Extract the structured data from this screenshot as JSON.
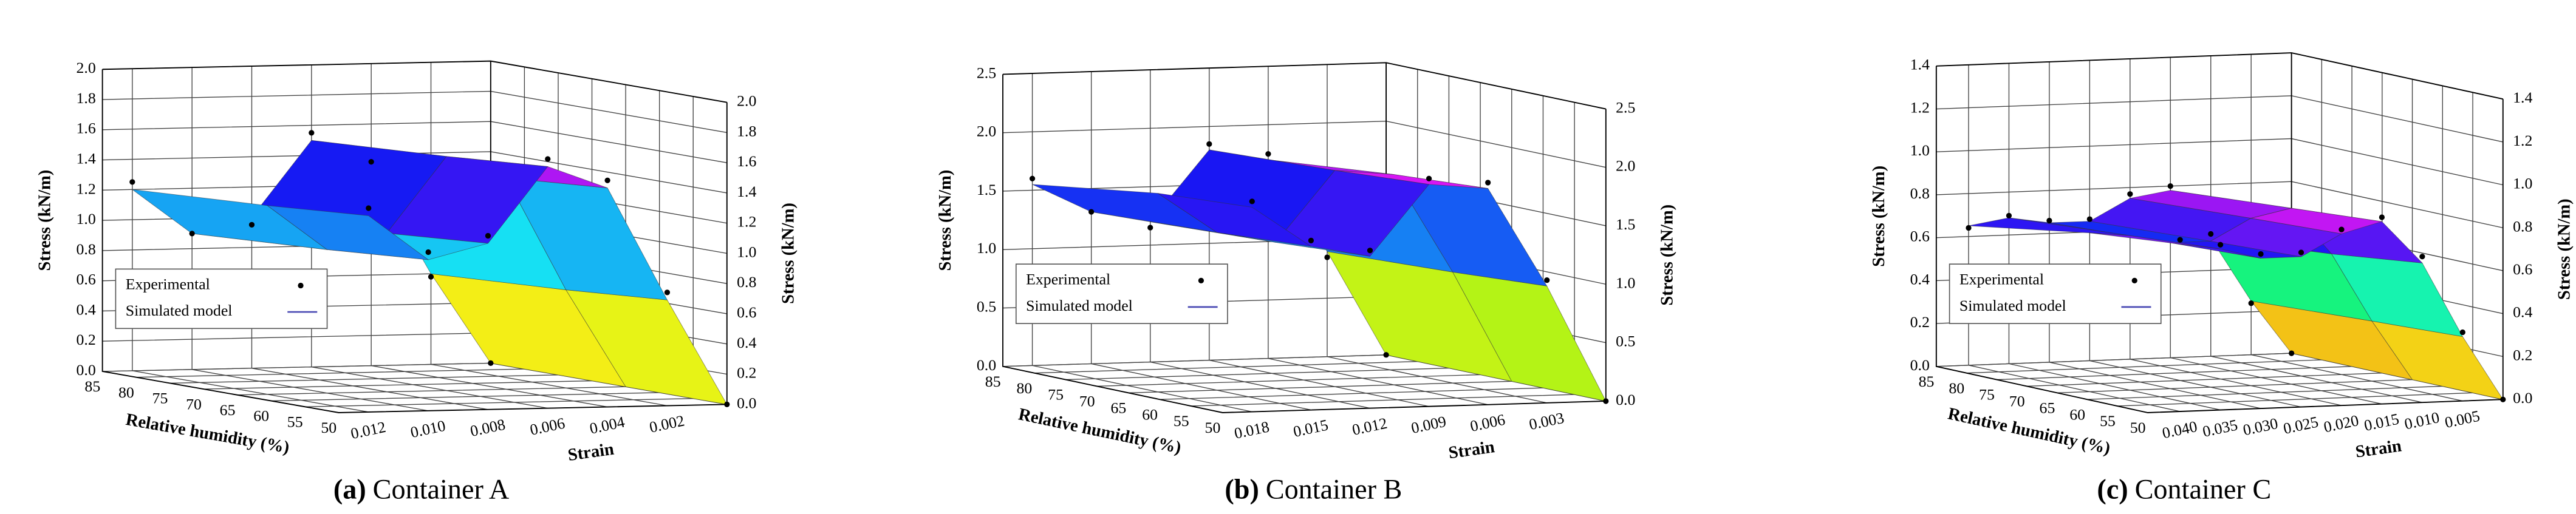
{
  "chart_data": [
    {
      "type": "surface3d",
      "caption_label": "(a)",
      "caption": "Container A",
      "xlabel": "Strain",
      "ylabel": "Relative humidity (%)",
      "zlabel": "Stress (kN/m)",
      "xlim": [
        0,
        0.013
      ],
      "xticks": [
        0.002,
        0.004,
        0.006,
        0.008,
        {
          "value": 0.01,
          "label": "0.010"
        },
        0.012
      ],
      "ylim": [
        50,
        85
      ],
      "yticks": [
        50,
        55,
        60,
        65,
        70,
        75,
        80,
        85
      ],
      "zlim": [
        0,
        2
      ],
      "zticks": [
        {
          "value": 0,
          "label": "0.0"
        },
        0.2,
        0.4,
        0.6,
        0.8,
        {
          "value": 1,
          "label": "1.0"
        },
        1.2,
        1.4,
        1.6,
        1.8,
        {
          "value": 2,
          "label": "2.0"
        }
      ],
      "series": [
        {
          "name": "Experimental",
          "color": "#000000",
          "x": [
            0,
            0.002,
            0.004,
            0.006,
            0.008,
            0.01,
            0.012,
            0,
            0.002,
            0.004,
            0.006,
            0.008,
            0.01,
            0.012
          ],
          "y": [
            50,
            50,
            50,
            50,
            50,
            50,
            50,
            85,
            85,
            85,
            85,
            85,
            85,
            85
          ],
          "values": [
            0,
            0.75,
            1.5,
            1.65,
            1.15,
            1.05,
            1.35,
            0,
            0.58,
            1.35,
            1.55,
            0.95,
            0.9,
            1.25
          ]
        },
        {
          "name": "Simulated model",
          "color": "#4b4bb4",
          "x": [
            0,
            0.002,
            0.004,
            0.006,
            0.008,
            0.01,
            0.012
          ],
          "y": [
            50,
            65,
            85
          ],
          "values": [
            [
              0,
              0.7,
              1.45,
              1.6,
              1.1,
              1.0,
              1.3
            ],
            [
              0,
              0.65,
              1.4,
              1.55,
              1.05,
              0.95,
              1.25
            ],
            [
              0,
              0.6,
              1.3,
              1.5,
              1.0,
              0.9,
              1.2
            ]
          ]
        }
      ]
    },
    {
      "type": "surface3d",
      "caption_label": "(b)",
      "caption": "Container B",
      "xlabel": "Strain",
      "ylabel": "Relative humidity (%)",
      "zlabel": "Stress (kN/m)",
      "xlim": [
        0,
        0.0195
      ],
      "xticks": [
        0.003,
        0.006,
        0.009,
        0.012,
        0.015,
        0.018
      ],
      "ylim": [
        50,
        85
      ],
      "yticks": [
        50,
        55,
        60,
        65,
        70,
        75,
        80,
        85
      ],
      "zlim": [
        0,
        2.5
      ],
      "zticks": [
        {
          "value": 0,
          "label": "0.0"
        },
        0.5,
        {
          "value": 1,
          "label": "1.0"
        },
        1.5,
        {
          "value": 2,
          "label": "2.0"
        },
        2.5
      ],
      "series": [
        {
          "name": "Experimental",
          "color": "#000000",
          "x": [
            0,
            0.003,
            0.006,
            0.009,
            0.012,
            0.015,
            0.018,
            0,
            0.003,
            0.006,
            0.009,
            0.012,
            0.015,
            0.018
          ],
          "y": [
            50,
            50,
            50,
            50,
            50,
            50,
            50,
            85,
            85,
            85,
            85,
            85,
            85,
            85
          ],
          "values": [
            0,
            1.05,
            1.9,
            1.95,
            1.35,
            1.45,
            1.8,
            0,
            0.85,
            1.75,
            1.85,
            1.15,
            1.3,
            1.6
          ]
        },
        {
          "name": "Simulated model",
          "color": "#4b4bb4",
          "x": [
            0,
            0.003,
            0.006,
            0.009,
            0.012,
            0.015,
            0.018
          ],
          "y": [
            50,
            65,
            85
          ],
          "values": [
            [
              0,
              1.0,
              1.85,
              1.9,
              1.3,
              1.4,
              1.75
            ],
            [
              0,
              0.95,
              1.8,
              1.85,
              1.25,
              1.35,
              1.7
            ],
            [
              0,
              0.9,
              1.7,
              1.8,
              1.2,
              1.3,
              1.55
            ]
          ]
        }
      ]
    },
    {
      "type": "surface3d",
      "caption_label": "(c)",
      "caption": "Container C",
      "xlabel": "Strain",
      "ylabel": "Relative humidity (%)",
      "zlabel": "Stress (kN/m)",
      "xlim": [
        0,
        0.044
      ],
      "xticks": [
        0.005,
        {
          "value": 0.01,
          "label": "0.010"
        },
        0.015,
        {
          "value": 0.02,
          "label": "0.020"
        },
        0.025,
        {
          "value": 0.03,
          "label": "0.030"
        },
        0.035,
        {
          "value": 0.04,
          "label": "0.040"
        }
      ],
      "ylim": [
        50,
        85
      ],
      "yticks": [
        50,
        55,
        60,
        65,
        70,
        75,
        80,
        85
      ],
      "zlim": [
        0,
        1.4
      ],
      "zticks": [
        {
          "value": 0,
          "label": "0.0"
        },
        0.2,
        0.4,
        0.6,
        0.8,
        {
          "value": 1,
          "label": "1.0"
        },
        1.2,
        1.4
      ],
      "series": [
        {
          "name": "Experimental",
          "color": "#000000",
          "x": [
            0,
            0.005,
            0.01,
            0.015,
            0.02,
            0.025,
            0.03,
            0.035,
            0.04,
            0,
            0.005,
            0.01,
            0.015,
            0.02,
            0.025,
            0.03,
            0.035,
            0.04
          ],
          "y": [
            50,
            50,
            50,
            50,
            50,
            50,
            50,
            50,
            50,
            85,
            85,
            85,
            85,
            85,
            85,
            85,
            85,
            85
          ],
          "values": [
            0,
            0.32,
            0.68,
            0.87,
            0.82,
            0.72,
            0.72,
            0.77,
            0.8,
            0,
            0.24,
            0.57,
            0.8,
            0.77,
            0.66,
            0.66,
            0.69,
            0.64
          ]
        },
        {
          "name": "Simulated model",
          "color": "#4b4bb4",
          "x": [
            0,
            0.005,
            0.01,
            0.015,
            0.02,
            0.025,
            0.03,
            0.035,
            0.04
          ],
          "y": [
            50,
            65,
            85
          ],
          "values": [
            [
              0,
              0.3,
              0.65,
              0.85,
              0.8,
              0.7,
              0.7,
              0.75,
              0.78
            ],
            [
              0,
              0.28,
              0.6,
              0.82,
              0.78,
              0.68,
              0.68,
              0.72,
              0.74
            ],
            [
              0,
              0.25,
              0.55,
              0.78,
              0.75,
              0.65,
              0.65,
              0.68,
              0.65
            ]
          ]
        }
      ]
    }
  ]
}
